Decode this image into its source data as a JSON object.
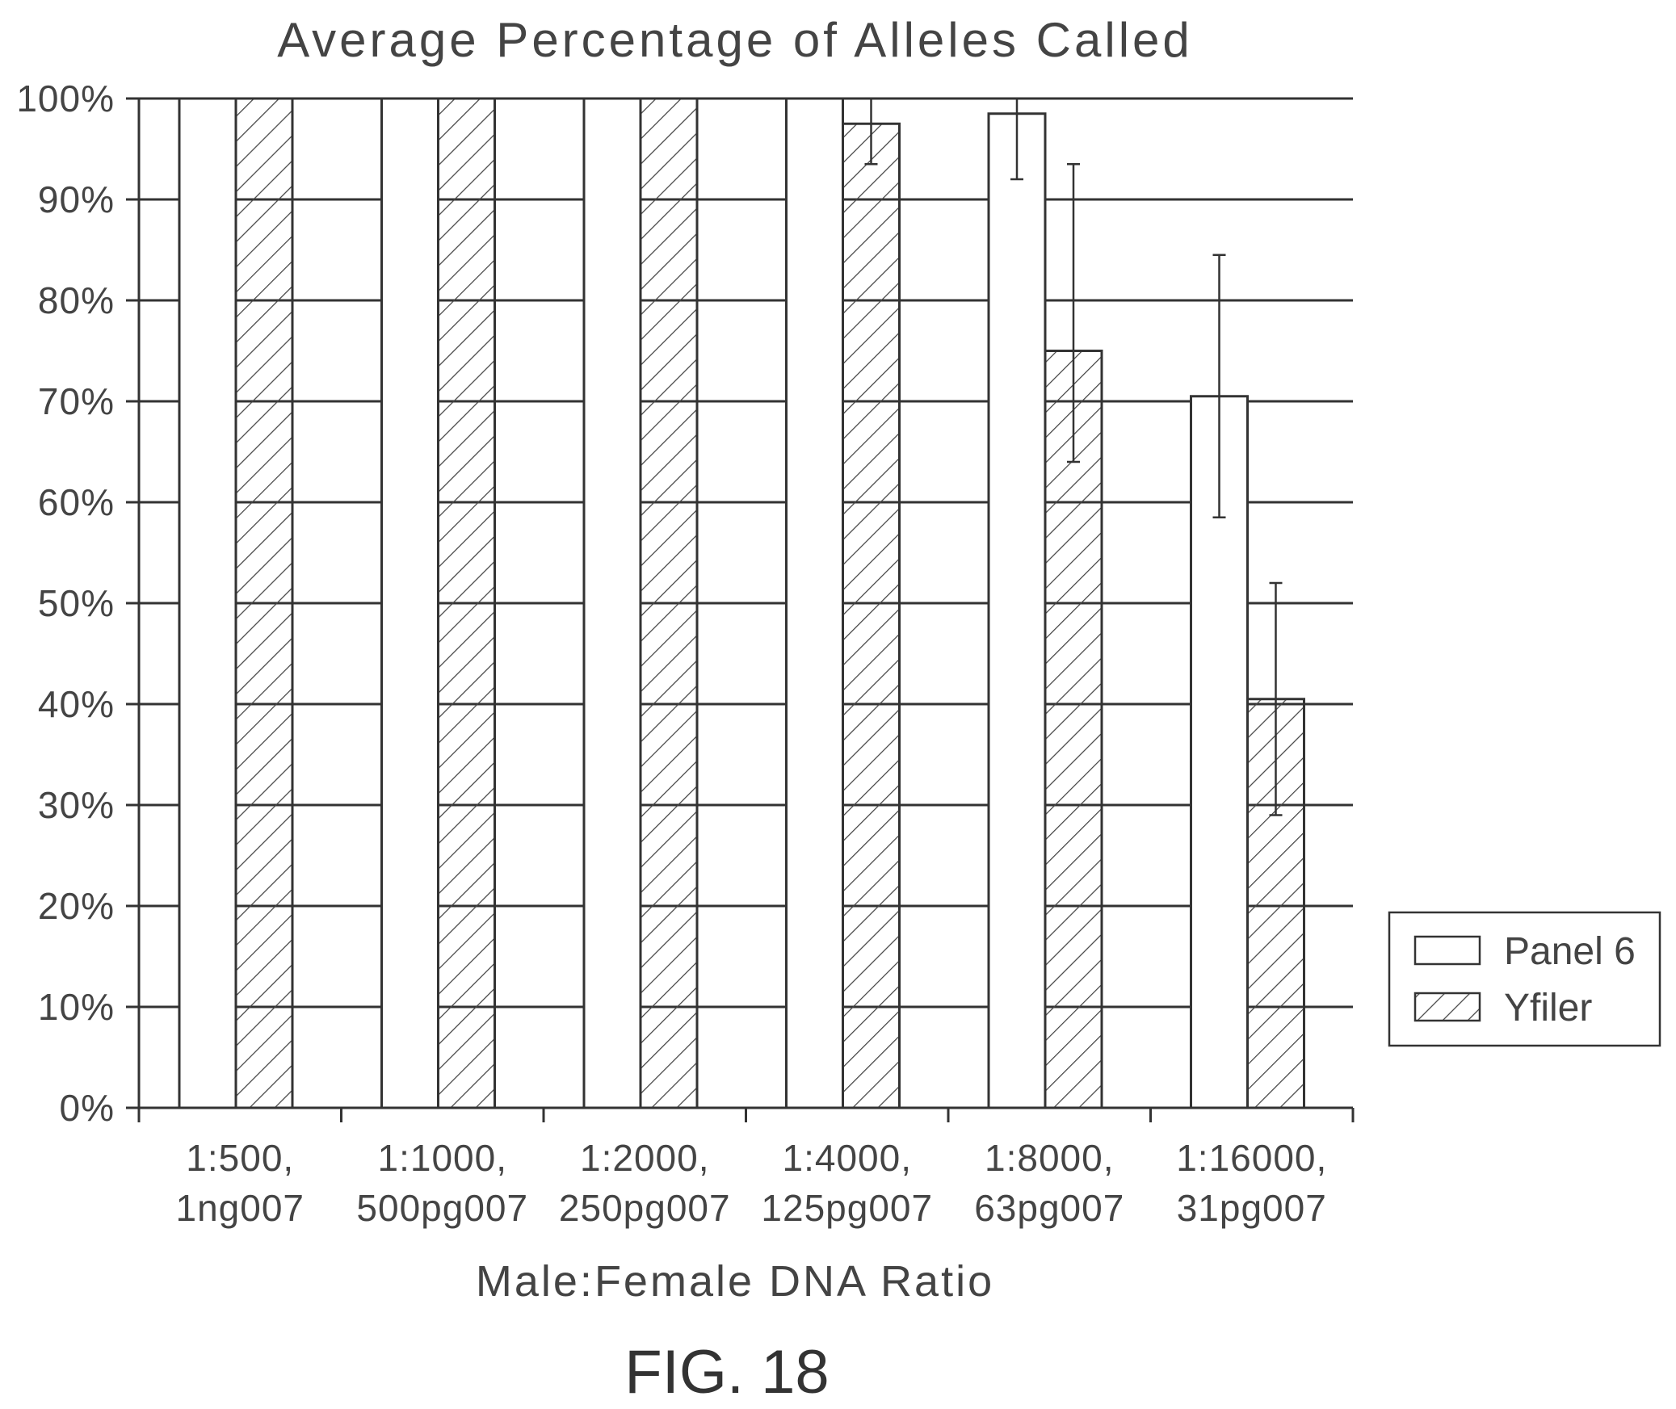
{
  "figure_label": "FIG. 18",
  "chart_data": {
    "type": "bar",
    "title": "Average Percentage of Alleles Called",
    "xlabel": "Male:Female DNA Ratio",
    "ylabel": "",
    "categories": [
      [
        "1:500,",
        "1ng007"
      ],
      [
        "1:1000,",
        "500pg007"
      ],
      [
        "1:2000,",
        "250pg007"
      ],
      [
        "1:4000,",
        "125pg007"
      ],
      [
        "1:8000,",
        "63pg007"
      ],
      [
        "1:16000,",
        "31pg007"
      ]
    ],
    "series": [
      {
        "name": "Panel 6",
        "fill": "white",
        "values": [
          100,
          100,
          100,
          100,
          98.5,
          70.5
        ],
        "error_low": [
          null,
          null,
          null,
          null,
          92,
          58.5
        ],
        "error_high": [
          null,
          null,
          null,
          null,
          100,
          84.5
        ]
      },
      {
        "name": "Yfiler",
        "fill": "hatched",
        "values": [
          100,
          100,
          100,
          97.5,
          75,
          40.5
        ],
        "error_low": [
          null,
          null,
          null,
          93.5,
          64,
          29
        ],
        "error_high": [
          null,
          null,
          null,
          100,
          93.5,
          52
        ]
      }
    ],
    "ylim": [
      0,
      100
    ],
    "yticks": [
      "0%",
      "10%",
      "20%",
      "30%",
      "40%",
      "50%",
      "60%",
      "70%",
      "80%",
      "90%",
      "100%"
    ],
    "grid": true,
    "legend_position": "right",
    "colors": {
      "line": "#333333",
      "bar_fill": "#ffffff",
      "hatch": "#444444"
    }
  }
}
